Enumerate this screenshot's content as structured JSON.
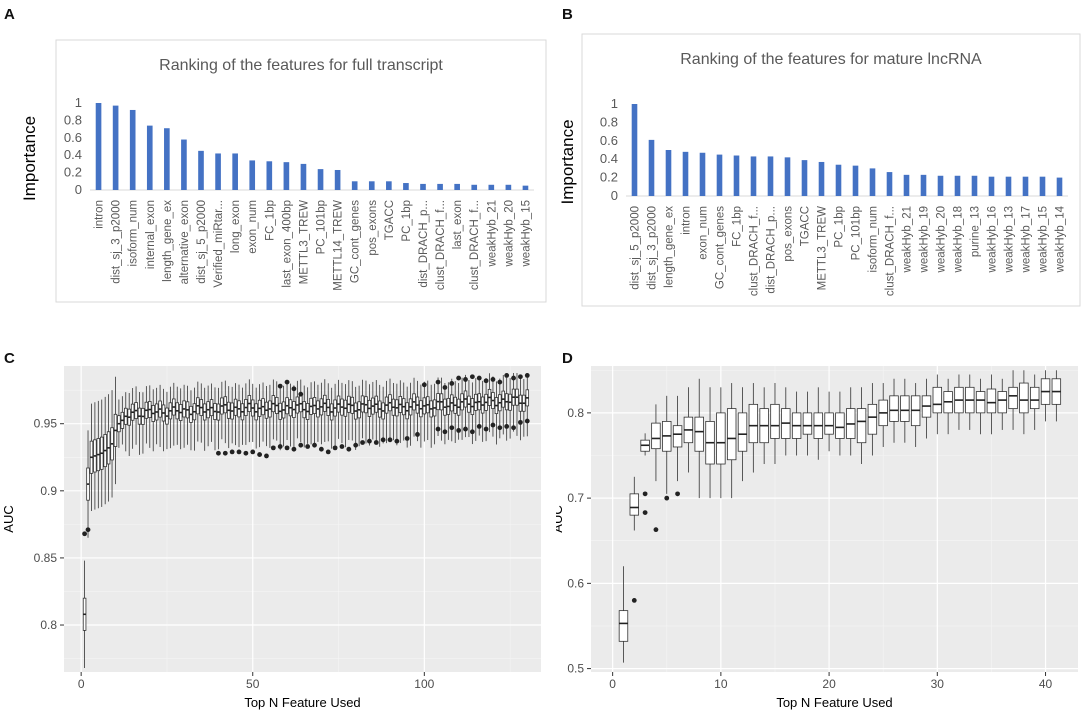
{
  "panels": {
    "a": "A",
    "b": "B",
    "c": "C",
    "d": "D"
  },
  "chart_data": [
    {
      "id": "A",
      "type": "bar",
      "title": "Ranking of the features for full transcript",
      "ylabel": "Importance",
      "xlabel": "",
      "ylim": [
        0,
        1
      ],
      "yticks": [
        0,
        0.2,
        0.4,
        0.6,
        0.8,
        1
      ],
      "bar_color": "#4472C4",
      "categories": [
        "intron",
        "dist_sj_3_p2000",
        "isoform_num",
        "internal_exon",
        "length_gene_ex",
        "alternative_exon",
        "dist_sj_5_p2000",
        "Verified_miRtar...",
        "long_exon",
        "exon_num",
        "FC_1bp",
        "last_exon_400bp",
        "METTL3_TREW",
        "PC_101bp",
        "METTL14_TREW",
        "GC_cont_genes",
        "pos_exons",
        "TGACC",
        "PC_1bp",
        "dist_DRACH_p...",
        "clust_DRACH_f...",
        "last_exon",
        "clust_DRACH_f...",
        "weakHyb_21",
        "weakHyb_20",
        "weakHyb_15"
      ],
      "values": [
        1.0,
        0.97,
        0.92,
        0.74,
        0.71,
        0.58,
        0.45,
        0.42,
        0.42,
        0.34,
        0.33,
        0.32,
        0.3,
        0.24,
        0.23,
        0.1,
        0.1,
        0.1,
        0.08,
        0.07,
        0.07,
        0.07,
        0.06,
        0.06,
        0.06,
        0.05
      ]
    },
    {
      "id": "B",
      "type": "bar",
      "title": "Ranking of the features for mature lncRNA",
      "ylabel": "Importance",
      "xlabel": "",
      "ylim": [
        0,
        1
      ],
      "yticks": [
        0,
        0.2,
        0.4,
        0.6,
        0.8,
        1
      ],
      "bar_color": "#4472C4",
      "categories": [
        "dist_sj_5_p2000",
        "dist_sj_3_p2000",
        "length_gene_ex",
        "intron",
        "exon_num",
        "GC_cont_genes",
        "FC_1bp",
        "clust_DRACH_f...",
        "dist_DRACH_p...",
        "pos_exons",
        "TGACC",
        "METTL3_TREW",
        "PC_1bp",
        "PC_101bp",
        "isoform_num",
        "clust_DRACH_f...",
        "weakHyb_21",
        "weakHyb_19",
        "weakHyb_20",
        "weakHyb_18",
        "purine_13",
        "weakHyb_16",
        "weakHyb_13",
        "weakHyb_17",
        "weakHyb_15",
        "weakHyb_14"
      ],
      "values": [
        1.0,
        0.61,
        0.5,
        0.48,
        0.47,
        0.45,
        0.44,
        0.43,
        0.43,
        0.42,
        0.39,
        0.37,
        0.34,
        0.33,
        0.3,
        0.26,
        0.23,
        0.23,
        0.22,
        0.22,
        0.22,
        0.21,
        0.21,
        0.21,
        0.21,
        0.2
      ]
    },
    {
      "id": "C",
      "type": "box",
      "xlabel": "Top N Feature Used",
      "ylabel": "AUC",
      "xlim": [
        -5,
        134
      ],
      "ylim": [
        0.765,
        0.993
      ],
      "xticks": [
        0,
        50,
        100
      ],
      "yticks": [
        0.8,
        0.85,
        0.9,
        0.95
      ],
      "n_features": 130,
      "profile": {
        "medians": {
          "1": 0.808,
          "2": 0.905,
          "3": 0.925,
          "4": 0.926,
          "5": 0.927,
          "6": 0.928,
          "7": 0.93,
          "8": 0.932,
          "9": 0.935,
          "10": 0.945,
          "11": 0.95,
          "13": 0.955,
          "16": 0.958,
          "40": 0.961,
          "60": 0.962,
          "100": 0.963,
          "130": 0.968
        },
        "iqr_half": 0.006,
        "whisker_ext": 0.012
      },
      "outliers": [
        [
          1,
          0.868
        ],
        [
          2,
          0.871
        ],
        [
          40,
          0.928
        ],
        [
          42,
          0.928
        ],
        [
          44,
          0.929
        ],
        [
          46,
          0.929
        ],
        [
          48,
          0.928
        ],
        [
          50,
          0.929
        ],
        [
          52,
          0.927
        ],
        [
          54,
          0.926
        ],
        [
          56,
          0.932
        ],
        [
          58,
          0.933
        ],
        [
          60,
          0.932
        ],
        [
          62,
          0.931
        ],
        [
          64,
          0.934
        ],
        [
          66,
          0.933
        ],
        [
          68,
          0.934
        ],
        [
          70,
          0.931
        ],
        [
          72,
          0.929
        ],
        [
          74,
          0.932
        ],
        [
          76,
          0.933
        ],
        [
          78,
          0.931
        ],
        [
          80,
          0.934
        ],
        [
          82,
          0.936
        ],
        [
          84,
          0.937
        ],
        [
          86,
          0.936
        ],
        [
          88,
          0.938
        ],
        [
          90,
          0.938
        ],
        [
          92,
          0.937
        ],
        [
          95,
          0.939
        ],
        [
          98,
          0.942
        ],
        [
          58,
          0.978
        ],
        [
          60,
          0.981
        ],
        [
          62,
          0.976
        ],
        [
          64,
          0.972
        ],
        [
          100,
          0.979
        ],
        [
          104,
          0.981
        ],
        [
          106,
          0.977
        ],
        [
          108,
          0.98
        ],
        [
          110,
          0.984
        ],
        [
          112,
          0.983
        ],
        [
          114,
          0.985
        ],
        [
          116,
          0.984
        ],
        [
          118,
          0.982
        ],
        [
          120,
          0.983
        ],
        [
          122,
          0.981
        ],
        [
          124,
          0.986
        ],
        [
          126,
          0.984
        ],
        [
          128,
          0.985
        ],
        [
          130,
          0.986
        ],
        [
          104,
          0.946
        ],
        [
          106,
          0.944
        ],
        [
          108,
          0.947
        ],
        [
          110,
          0.945
        ],
        [
          112,
          0.946
        ],
        [
          114,
          0.944
        ],
        [
          116,
          0.948
        ],
        [
          118,
          0.946
        ],
        [
          120,
          0.949
        ],
        [
          122,
          0.947
        ],
        [
          124,
          0.948
        ],
        [
          126,
          0.947
        ],
        [
          128,
          0.951
        ],
        [
          130,
          0.952
        ]
      ]
    },
    {
      "id": "D",
      "type": "box",
      "xlabel": "Top N Feature Used",
      "ylabel": "AUC",
      "xlim": [
        -2,
        43
      ],
      "ylim": [
        0.496,
        0.855
      ],
      "xticks": [
        0,
        10,
        20,
        30,
        40
      ],
      "yticks": [
        0.5,
        0.6,
        0.7,
        0.8
      ],
      "boxes": [
        {
          "x": 1,
          "q1": 0.532,
          "med": 0.553,
          "q3": 0.568,
          "lo": 0.507,
          "hi": 0.62
        },
        {
          "x": 2,
          "q1": 0.68,
          "med": 0.689,
          "q3": 0.705,
          "lo": 0.662,
          "hi": 0.725
        },
        {
          "x": 3,
          "q1": 0.755,
          "med": 0.762,
          "q3": 0.768,
          "lo": 0.75,
          "hi": 0.776
        },
        {
          "x": 4,
          "q1": 0.758,
          "med": 0.77,
          "q3": 0.788,
          "lo": 0.72,
          "hi": 0.81
        },
        {
          "x": 5,
          "q1": 0.755,
          "med": 0.773,
          "q3": 0.79,
          "lo": 0.705,
          "hi": 0.82
        },
        {
          "x": 6,
          "q1": 0.76,
          "med": 0.775,
          "q3": 0.785,
          "lo": 0.72,
          "hi": 0.82
        },
        {
          "x": 7,
          "q1": 0.765,
          "med": 0.78,
          "q3": 0.795,
          "lo": 0.73,
          "hi": 0.83
        },
        {
          "x": 8,
          "q1": 0.755,
          "med": 0.778,
          "q3": 0.795,
          "lo": 0.7,
          "hi": 0.84
        },
        {
          "x": 9,
          "q1": 0.74,
          "med": 0.765,
          "q3": 0.79,
          "lo": 0.7,
          "hi": 0.83
        },
        {
          "x": 10,
          "q1": 0.74,
          "med": 0.765,
          "q3": 0.8,
          "lo": 0.7,
          "hi": 0.83
        },
        {
          "x": 11,
          "q1": 0.745,
          "med": 0.77,
          "q3": 0.805,
          "lo": 0.7,
          "hi": 0.835
        },
        {
          "x": 12,
          "q1": 0.755,
          "med": 0.775,
          "q3": 0.8,
          "lo": 0.72,
          "hi": 0.83
        },
        {
          "x": 13,
          "q1": 0.765,
          "med": 0.785,
          "q3": 0.81,
          "lo": 0.73,
          "hi": 0.835
        },
        {
          "x": 14,
          "q1": 0.765,
          "med": 0.785,
          "q3": 0.805,
          "lo": 0.74,
          "hi": 0.83
        },
        {
          "x": 15,
          "q1": 0.77,
          "med": 0.785,
          "q3": 0.81,
          "lo": 0.74,
          "hi": 0.835
        },
        {
          "x": 16,
          "q1": 0.77,
          "med": 0.788,
          "q3": 0.805,
          "lo": 0.75,
          "hi": 0.83
        },
        {
          "x": 17,
          "q1": 0.77,
          "med": 0.785,
          "q3": 0.8,
          "lo": 0.75,
          "hi": 0.825
        },
        {
          "x": 18,
          "q1": 0.775,
          "med": 0.785,
          "q3": 0.8,
          "lo": 0.75,
          "hi": 0.825
        },
        {
          "x": 19,
          "q1": 0.77,
          "med": 0.785,
          "q3": 0.8,
          "lo": 0.745,
          "hi": 0.83
        },
        {
          "x": 20,
          "q1": 0.775,
          "med": 0.785,
          "q3": 0.8,
          "lo": 0.755,
          "hi": 0.825
        },
        {
          "x": 21,
          "q1": 0.77,
          "med": 0.783,
          "q3": 0.8,
          "lo": 0.75,
          "hi": 0.825
        },
        {
          "x": 22,
          "q1": 0.77,
          "med": 0.787,
          "q3": 0.805,
          "lo": 0.75,
          "hi": 0.83
        },
        {
          "x": 23,
          "q1": 0.765,
          "med": 0.79,
          "q3": 0.805,
          "lo": 0.74,
          "hi": 0.83
        },
        {
          "x": 24,
          "q1": 0.775,
          "med": 0.795,
          "q3": 0.81,
          "lo": 0.75,
          "hi": 0.835
        },
        {
          "x": 25,
          "q1": 0.785,
          "med": 0.8,
          "q3": 0.815,
          "lo": 0.76,
          "hi": 0.835
        },
        {
          "x": 26,
          "q1": 0.79,
          "med": 0.803,
          "q3": 0.82,
          "lo": 0.765,
          "hi": 0.84
        },
        {
          "x": 27,
          "q1": 0.79,
          "med": 0.803,
          "q3": 0.82,
          "lo": 0.765,
          "hi": 0.84
        },
        {
          "x": 28,
          "q1": 0.785,
          "med": 0.803,
          "q3": 0.82,
          "lo": 0.76,
          "hi": 0.835
        },
        {
          "x": 29,
          "q1": 0.795,
          "med": 0.808,
          "q3": 0.82,
          "lo": 0.77,
          "hi": 0.84
        },
        {
          "x": 30,
          "q1": 0.8,
          "med": 0.81,
          "q3": 0.83,
          "lo": 0.775,
          "hi": 0.845
        },
        {
          "x": 31,
          "q1": 0.8,
          "med": 0.813,
          "q3": 0.825,
          "lo": 0.775,
          "hi": 0.84
        },
        {
          "x": 32,
          "q1": 0.8,
          "med": 0.815,
          "q3": 0.83,
          "lo": 0.78,
          "hi": 0.845
        },
        {
          "x": 33,
          "q1": 0.8,
          "med": 0.815,
          "q3": 0.83,
          "lo": 0.78,
          "hi": 0.845
        },
        {
          "x": 34,
          "q1": 0.8,
          "med": 0.815,
          "q3": 0.825,
          "lo": 0.775,
          "hi": 0.84
        },
        {
          "x": 35,
          "q1": 0.8,
          "med": 0.812,
          "q3": 0.828,
          "lo": 0.775,
          "hi": 0.845
        },
        {
          "x": 36,
          "q1": 0.8,
          "med": 0.815,
          "q3": 0.825,
          "lo": 0.78,
          "hi": 0.84
        },
        {
          "x": 37,
          "q1": 0.805,
          "med": 0.82,
          "q3": 0.83,
          "lo": 0.78,
          "hi": 0.85
        },
        {
          "x": 38,
          "q1": 0.8,
          "med": 0.815,
          "q3": 0.835,
          "lo": 0.775,
          "hi": 0.85
        },
        {
          "x": 39,
          "q1": 0.805,
          "med": 0.815,
          "q3": 0.83,
          "lo": 0.78,
          "hi": 0.845
        },
        {
          "x": 40,
          "q1": 0.81,
          "med": 0.825,
          "q3": 0.84,
          "lo": 0.79,
          "hi": 0.85
        },
        {
          "x": 41,
          "q1": 0.81,
          "med": 0.825,
          "q3": 0.84,
          "lo": 0.79,
          "hi": 0.85
        }
      ],
      "outliers": [
        [
          2,
          0.58
        ],
        [
          3,
          0.705
        ],
        [
          3,
          0.683
        ],
        [
          4,
          0.663
        ],
        [
          5,
          0.7
        ],
        [
          6,
          0.705
        ]
      ]
    }
  ]
}
